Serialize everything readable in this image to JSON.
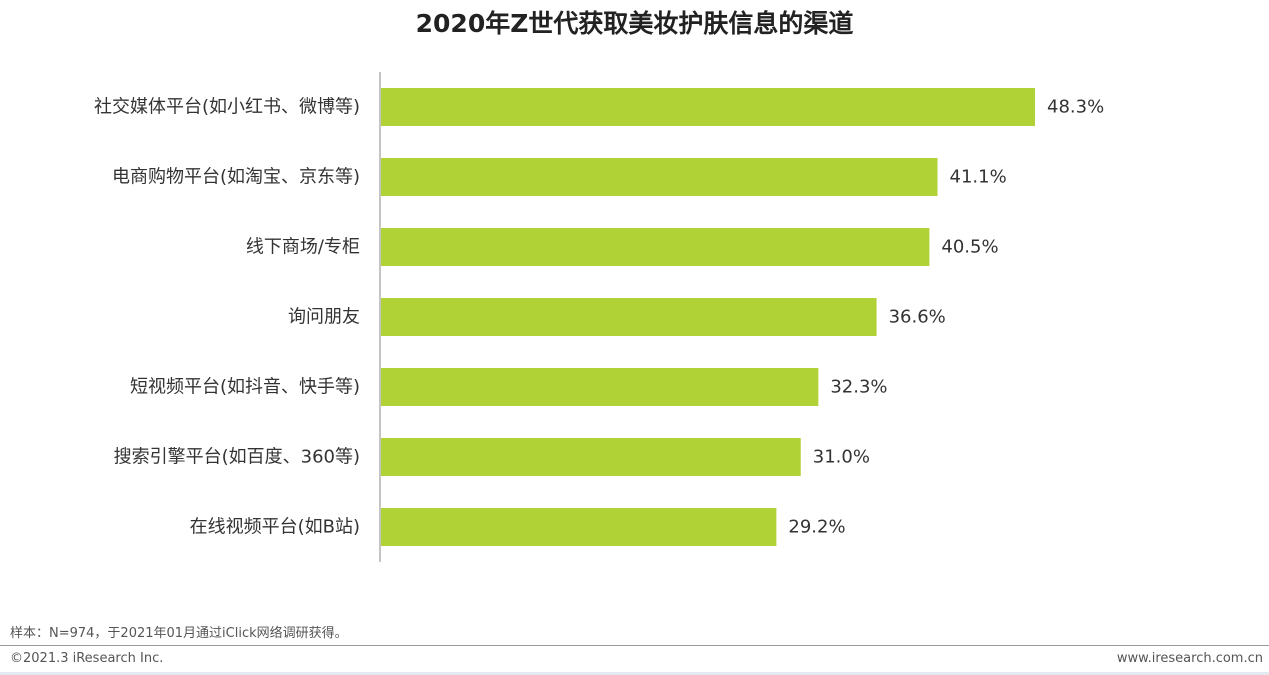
{
  "chart_data": {
    "type": "bar",
    "orientation": "horizontal",
    "title": "2020年Z世代获取美妆护肤信息的渠道",
    "categories": [
      "社交媒体平台(如小红书、微博等)",
      "电商购物平台(如淘宝、京东等)",
      "线下商场/专柜",
      "询问朋友",
      "短视频平台(如抖音、快手等)",
      "搜索引擎平台(如百度、360等)",
      "在线视频平台(如B站)"
    ],
    "values": [
      48.3,
      41.1,
      40.5,
      36.6,
      32.3,
      31.0,
      29.2
    ],
    "value_labels": [
      "48.3%",
      "41.1%",
      "40.5%",
      "36.6%",
      "32.3%",
      "31.0%",
      "29.2%"
    ],
    "unit": "%",
    "xlim": [
      0,
      50
    ],
    "grid": false,
    "bar_color": "#b0d236"
  },
  "footer": {
    "sample_note": "样本：N=974，于2021年01月通过iClick网络调研获得。",
    "copyright": "©2021.3 iResearch Inc.",
    "website": "www.iresearch.com.cn"
  }
}
